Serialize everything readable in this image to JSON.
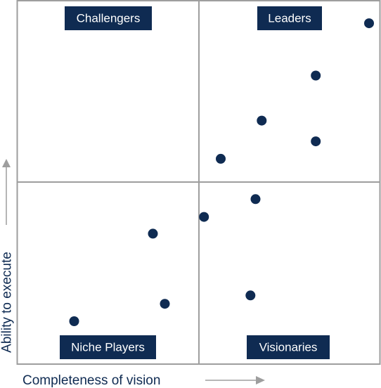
{
  "chart_data": {
    "type": "scatter",
    "quadrants": {
      "top_left": "Challengers",
      "top_right": "Leaders",
      "bottom_left": "Niche Players",
      "bottom_right": "Visionaries"
    },
    "xlabel": "Completeness of vision",
    "ylabel": "Ability to execute",
    "xlim": [
      0,
      1
    ],
    "ylim": [
      0,
      1
    ],
    "grid": false,
    "colors": {
      "point": "#0f2b52",
      "label_bg": "#0f2b52",
      "border": "#9e9e9e",
      "axis_text": "#0f2b52"
    },
    "points": [
      {
        "x": 0.97,
        "y": 0.938
      },
      {
        "x": 0.823,
        "y": 0.794
      },
      {
        "x": 0.674,
        "y": 0.67
      },
      {
        "x": 0.823,
        "y": 0.613
      },
      {
        "x": 0.561,
        "y": 0.565
      },
      {
        "x": 0.657,
        "y": 0.454
      },
      {
        "x": 0.515,
        "y": 0.405
      },
      {
        "x": 0.374,
        "y": 0.359
      },
      {
        "x": 0.643,
        "y": 0.189
      },
      {
        "x": 0.407,
        "y": 0.166
      },
      {
        "x": 0.157,
        "y": 0.118
      }
    ]
  }
}
